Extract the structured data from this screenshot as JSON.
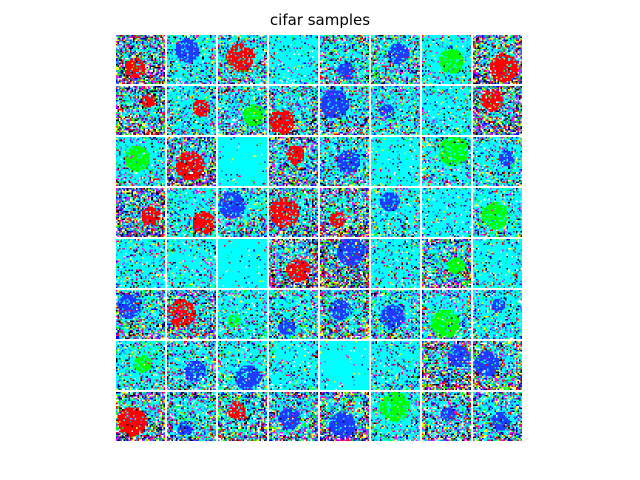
{
  "figure": {
    "title": "cifar samples"
  },
  "grid": {
    "rows": 8,
    "cols": 8,
    "image_resolution": 32
  },
  "colors": {
    "background": "#00ffff",
    "palette": [
      "#00ffff",
      "#0000ff",
      "#ff0000",
      "#00ff00",
      "#ffffff",
      "#000000",
      "#ff00ff",
      "#4169e1",
      "#1e90ff",
      "#ffff00"
    ]
  },
  "samples": [
    {
      "noise": 0.85,
      "blob": "red"
    },
    {
      "noise": 0.3,
      "blob": "blue"
    },
    {
      "noise": 0.45,
      "blob": "red"
    },
    {
      "noise": 0.15,
      "blob": "none"
    },
    {
      "noise": 0.5,
      "blob": "blue"
    },
    {
      "noise": 0.5,
      "blob": "blue"
    },
    {
      "noise": 0.2,
      "blob": "green"
    },
    {
      "noise": 0.75,
      "blob": "red"
    },
    {
      "noise": 0.75,
      "blob": "red"
    },
    {
      "noise": 0.35,
      "blob": "red"
    },
    {
      "noise": 0.5,
      "blob": "green"
    },
    {
      "noise": 0.55,
      "blob": "red"
    },
    {
      "noise": 0.5,
      "blob": "blue"
    },
    {
      "noise": 0.4,
      "blob": "blue"
    },
    {
      "noise": 0.25,
      "blob": "none"
    },
    {
      "noise": 0.8,
      "blob": "red"
    },
    {
      "noise": 0.3,
      "blob": "green"
    },
    {
      "noise": 0.7,
      "blob": "red"
    },
    {
      "noise": 0.05,
      "blob": "none"
    },
    {
      "noise": 0.65,
      "blob": "red"
    },
    {
      "noise": 0.45,
      "blob": "blue"
    },
    {
      "noise": 0.15,
      "blob": "none"
    },
    {
      "noise": 0.35,
      "blob": "green"
    },
    {
      "noise": 0.35,
      "blob": "blue"
    },
    {
      "noise": 0.8,
      "blob": "red"
    },
    {
      "noise": 0.35,
      "blob": "red"
    },
    {
      "noise": 0.45,
      "blob": "blue"
    },
    {
      "noise": 0.6,
      "blob": "red"
    },
    {
      "noise": 0.7,
      "blob": "red"
    },
    {
      "noise": 0.3,
      "blob": "blue"
    },
    {
      "noise": 0.15,
      "blob": "none"
    },
    {
      "noise": 0.3,
      "blob": "green"
    },
    {
      "noise": 0.25,
      "blob": "none"
    },
    {
      "noise": 0.2,
      "blob": "none"
    },
    {
      "noise": 0.05,
      "blob": "none"
    },
    {
      "noise": 0.7,
      "blob": "red"
    },
    {
      "noise": 0.85,
      "blob": "blue"
    },
    {
      "noise": 0.2,
      "blob": "none"
    },
    {
      "noise": 0.65,
      "blob": "green"
    },
    {
      "noise": 0.2,
      "blob": "none"
    },
    {
      "noise": 0.55,
      "blob": "blue"
    },
    {
      "noise": 0.6,
      "blob": "red"
    },
    {
      "noise": 0.3,
      "blob": "green"
    },
    {
      "noise": 0.45,
      "blob": "blue"
    },
    {
      "noise": 0.6,
      "blob": "blue"
    },
    {
      "noise": 0.45,
      "blob": "blue"
    },
    {
      "noise": 0.4,
      "blob": "green"
    },
    {
      "noise": 0.3,
      "blob": "blue"
    },
    {
      "noise": 0.3,
      "blob": "green"
    },
    {
      "noise": 0.45,
      "blob": "blue"
    },
    {
      "noise": 0.35,
      "blob": "blue"
    },
    {
      "noise": 0.25,
      "blob": "none"
    },
    {
      "noise": 0.05,
      "blob": "none"
    },
    {
      "noise": 0.25,
      "blob": "none"
    },
    {
      "noise": 0.75,
      "blob": "blue"
    },
    {
      "noise": 0.65,
      "blob": "blue"
    },
    {
      "noise": 0.75,
      "blob": "red"
    },
    {
      "noise": 0.55,
      "blob": "blue"
    },
    {
      "noise": 0.65,
      "blob": "red"
    },
    {
      "noise": 0.6,
      "blob": "blue"
    },
    {
      "noise": 0.7,
      "blob": "blue"
    },
    {
      "noise": 0.3,
      "blob": "green"
    },
    {
      "noise": 0.6,
      "blob": "blue"
    },
    {
      "noise": 0.55,
      "blob": "blue"
    }
  ]
}
